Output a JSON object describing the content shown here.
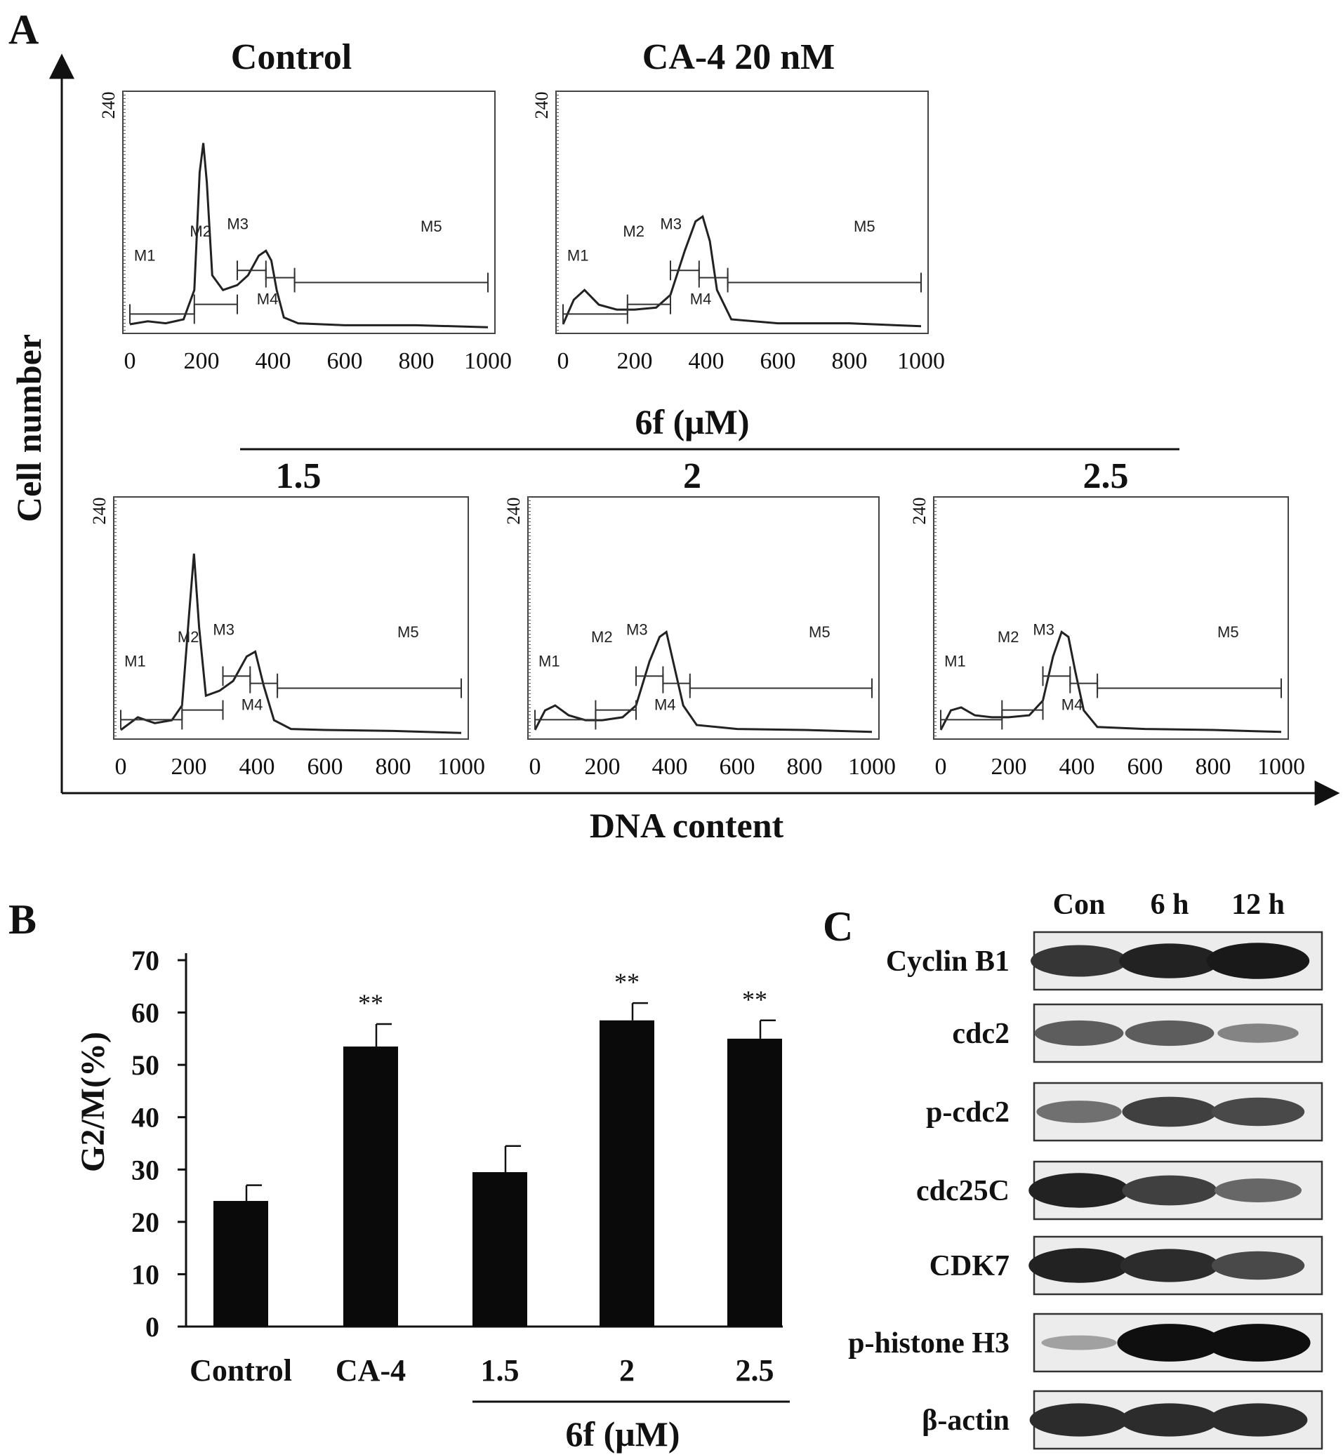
{
  "figure": {
    "panel_a": {
      "label": "A",
      "y_axis_label": "Cell number",
      "x_axis_label": "DNA content",
      "group_label": "6f (μM)",
      "marker_labels": [
        "M1",
        "M2",
        "M3",
        "M4",
        "M5"
      ]
    },
    "panel_b": {
      "label": "B"
    },
    "panel_c": {
      "label": "C",
      "lane_headers": [
        "Con",
        "6 h",
        "12 h"
      ],
      "blots": [
        {
          "protein": "Cyclin B1",
          "intensities": [
            0.75,
            0.85,
            0.9
          ]
        },
        {
          "protein": "cdc2",
          "intensities": [
            0.55,
            0.55,
            0.35
          ]
        },
        {
          "protein": "p-cdc2",
          "intensities": [
            0.45,
            0.7,
            0.65
          ]
        },
        {
          "protein": "cdc25C",
          "intensities": [
            0.85,
            0.7,
            0.5
          ]
        },
        {
          "protein": "CDK7",
          "intensities": [
            0.85,
            0.8,
            0.65
          ]
        },
        {
          "protein": "p-histone H3",
          "intensities": [
            0.2,
            0.95,
            0.95
          ]
        },
        {
          "protein": "β-actin",
          "intensities": [
            0.8,
            0.8,
            0.8
          ]
        }
      ]
    }
  },
  "chart_data": [
    {
      "type": "line",
      "title": "Control",
      "ytick": "240",
      "xticks": [
        0,
        200,
        400,
        600,
        800,
        1000
      ],
      "xlim": [
        0,
        1000
      ],
      "ylim": [
        0,
        240
      ],
      "x": [
        0,
        50,
        100,
        150,
        180,
        195,
        205,
        215,
        230,
        260,
        300,
        330,
        360,
        380,
        395,
        410,
        430,
        470,
        600,
        800,
        1000
      ],
      "y": [
        5,
        8,
        6,
        10,
        40,
        160,
        190,
        150,
        55,
        40,
        45,
        55,
        75,
        80,
        70,
        40,
        12,
        6,
        4,
        4,
        2
      ]
    },
    {
      "type": "line",
      "title": "CA-4  20 nM",
      "ytick": "240",
      "xticks": [
        0,
        200,
        400,
        600,
        800,
        1000
      ],
      "xlim": [
        0,
        1000
      ],
      "ylim": [
        0,
        240
      ],
      "x": [
        0,
        30,
        60,
        100,
        150,
        200,
        260,
        300,
        340,
        370,
        390,
        410,
        430,
        470,
        600,
        800,
        1000
      ],
      "y": [
        5,
        30,
        40,
        25,
        20,
        20,
        22,
        35,
        80,
        110,
        115,
        90,
        40,
        10,
        6,
        6,
        3
      ]
    },
    {
      "type": "line",
      "title": "1.5",
      "ytick": "240",
      "xticks": [
        0,
        200,
        400,
        600,
        800,
        1000
      ],
      "xlim": [
        0,
        1000
      ],
      "ylim": [
        0,
        240
      ],
      "x": [
        0,
        50,
        100,
        150,
        180,
        200,
        215,
        230,
        250,
        290,
        330,
        370,
        395,
        420,
        450,
        500,
        600,
        800,
        1000
      ],
      "y": [
        5,
        18,
        12,
        15,
        30,
        120,
        185,
        110,
        40,
        45,
        55,
        80,
        85,
        50,
        15,
        6,
        5,
        4,
        2
      ]
    },
    {
      "type": "line",
      "title": "2",
      "ytick": "240",
      "xticks": [
        0,
        200,
        400,
        600,
        800,
        1000
      ],
      "xlim": [
        0,
        1000
      ],
      "ylim": [
        0,
        240
      ],
      "x": [
        0,
        30,
        60,
        100,
        150,
        200,
        260,
        300,
        340,
        370,
        390,
        410,
        440,
        480,
        600,
        800,
        1000
      ],
      "y": [
        5,
        25,
        30,
        20,
        15,
        15,
        18,
        30,
        75,
        100,
        105,
        75,
        30,
        10,
        6,
        5,
        3
      ]
    },
    {
      "type": "line",
      "title": "2.5",
      "ytick": "240",
      "xticks": [
        0,
        200,
        400,
        600,
        800,
        1000
      ],
      "xlim": [
        0,
        1000
      ],
      "ylim": [
        0,
        240
      ],
      "x": [
        0,
        30,
        60,
        100,
        150,
        200,
        260,
        300,
        330,
        355,
        375,
        395,
        420,
        460,
        600,
        800,
        1000
      ],
      "y": [
        5,
        25,
        28,
        20,
        18,
        18,
        20,
        35,
        80,
        105,
        100,
        65,
        25,
        8,
        6,
        5,
        3
      ]
    },
    {
      "type": "bar",
      "categories": [
        "Control",
        "CA-4",
        "1.5",
        "2",
        "2.5"
      ],
      "values": [
        24,
        53.5,
        29.5,
        58.5,
        55
      ],
      "errors": [
        3,
        4.3,
        5,
        3.3,
        3.5
      ],
      "significance": [
        "",
        "**",
        "",
        "**",
        "**"
      ],
      "ylabel": "G2/M(%)",
      "yticks": [
        0,
        10,
        20,
        30,
        40,
        50,
        60,
        70
      ],
      "ylim": [
        0,
        70
      ],
      "group_label": "6f (μM)"
    }
  ]
}
